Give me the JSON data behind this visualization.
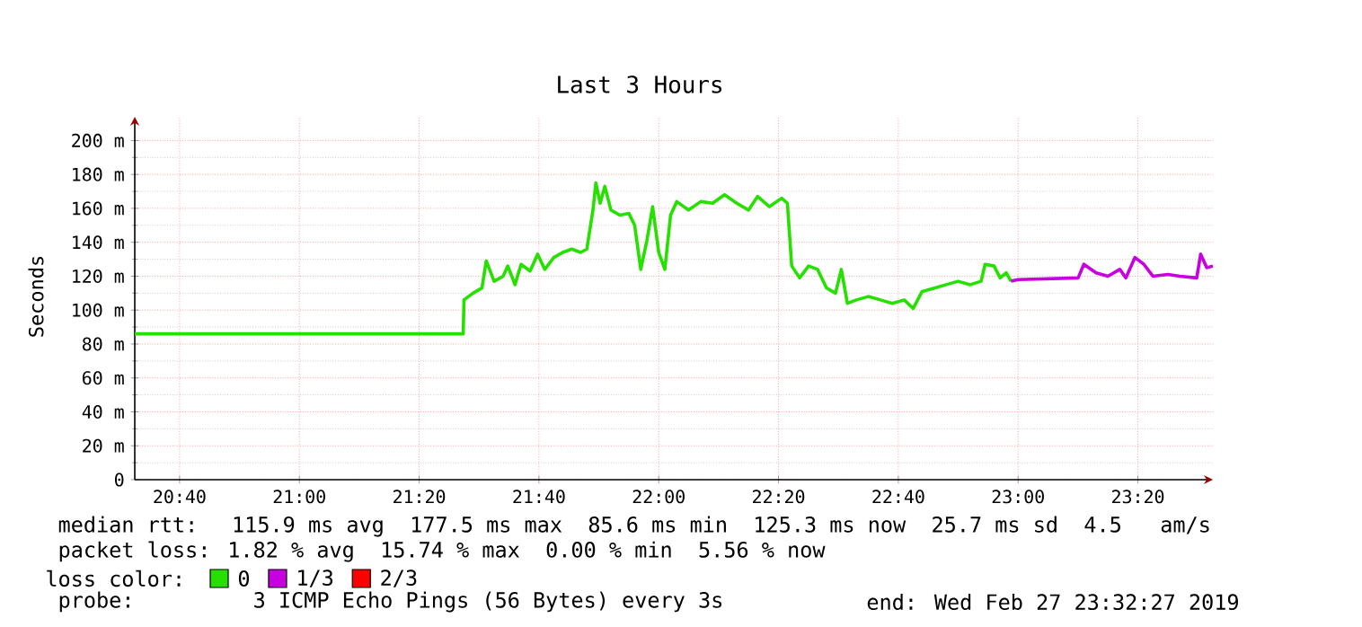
{
  "chart_data": {
    "type": "line",
    "title": "Last 3 Hours",
    "ylabel": "Seconds",
    "xlim": [
      20.542,
      23.542
    ],
    "ylim": [
      0,
      214
    ],
    "xticks": [
      {
        "value": 20.6667,
        "label": "20:40"
      },
      {
        "value": 21.0,
        "label": "21:00"
      },
      {
        "value": 21.3333,
        "label": "21:20"
      },
      {
        "value": 21.6667,
        "label": "21:40"
      },
      {
        "value": 22.0,
        "label": "22:00"
      },
      {
        "value": 22.3333,
        "label": "22:20"
      },
      {
        "value": 22.6667,
        "label": "22:40"
      },
      {
        "value": 23.0,
        "label": "23:00"
      },
      {
        "value": 23.3333,
        "label": "23:20"
      }
    ],
    "yticks": [
      0,
      {
        "value": 20,
        "label": "20 m"
      },
      {
        "value": 40,
        "label": "40 m"
      },
      {
        "value": 60,
        "label": "60 m"
      },
      {
        "value": 80,
        "label": "80 m"
      },
      {
        "value": 100,
        "label": "100 m"
      },
      {
        "value": 120,
        "label": "120 m"
      },
      {
        "value": 140,
        "label": "140 m"
      },
      {
        "value": 160,
        "label": "160 m"
      },
      {
        "value": 180,
        "label": "180 m"
      },
      {
        "value": 200,
        "label": "200 m"
      }
    ],
    "grid": true,
    "legend": "bottom",
    "legend_title": "loss color:",
    "series": [
      {
        "name": "0",
        "color": "#26e000",
        "x": [
          20.542,
          21.456,
          21.458,
          21.483,
          21.508,
          21.52,
          21.542,
          21.567,
          21.58,
          21.6,
          21.617,
          21.642,
          21.663,
          21.683,
          21.708,
          21.733,
          21.758,
          21.783,
          21.8,
          21.817,
          21.825,
          21.837,
          21.85,
          21.867,
          21.892,
          21.917,
          21.933,
          21.95,
          21.967,
          21.983,
          22.0,
          22.017,
          22.033,
          22.05,
          22.083,
          22.117,
          22.15,
          22.183,
          22.217,
          22.25,
          22.275,
          22.308,
          22.342,
          22.358,
          22.37,
          22.392,
          22.417,
          22.442,
          22.467,
          22.492,
          22.508,
          22.525,
          22.55,
          22.583,
          22.617,
          22.65,
          22.683,
          22.708,
          22.733,
          22.767,
          22.8,
          22.833,
          22.867,
          22.897,
          22.908,
          22.933,
          22.95,
          22.967,
          22.98
        ],
        "values": [
          86,
          86,
          106,
          110,
          113,
          129,
          117,
          120,
          126,
          115,
          127,
          123,
          133,
          124,
          131,
          134,
          136,
          134,
          136,
          159,
          175,
          163,
          173,
          159,
          156,
          157,
          150,
          124,
          141,
          161,
          134,
          124,
          156,
          164,
          159,
          164,
          163,
          168,
          163,
          159,
          167,
          161,
          166,
          163,
          126,
          119,
          126,
          124,
          113,
          110,
          124,
          104,
          106,
          108,
          106,
          104,
          106,
          101,
          111,
          113,
          115,
          117,
          115,
          117,
          127,
          126,
          119,
          122,
          117
        ]
      },
      {
        "name": "1/3",
        "color": "#c800e0",
        "x": [
          22.98,
          23.0,
          23.167,
          23.183,
          23.217,
          23.25,
          23.283,
          23.3,
          23.325,
          23.35,
          23.375,
          23.417,
          23.45,
          23.497,
          23.508,
          23.525,
          23.542
        ],
        "values": [
          117,
          118,
          119,
          127,
          122,
          120,
          124,
          119,
          131,
          127,
          120,
          121,
          120,
          119,
          133,
          125,
          126
        ]
      },
      {
        "name": "2/3",
        "color": "#ff0000"
      }
    ],
    "annotations": [
      "median rtt:  115.9 ms avg  177.5 ms max  85.6 ms min  125.3 ms now  25.7 ms sd  4.5   am/s",
      "packet loss: 1.82 % avg  15.74 % max  0.00 % min  5.56 % now",
      "probe:       3 ICMP Echo Pings (56 Bytes) every 3s",
      "end: Wed Feb 27 23:32:27 2019"
    ]
  }
}
